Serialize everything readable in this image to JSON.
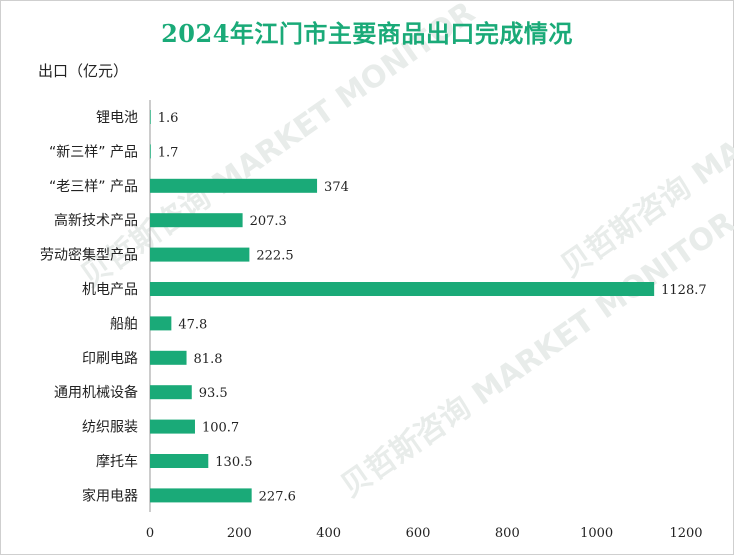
{
  "title": "2024年江门市主要商品出口完成情况",
  "unit_label": "出口（亿元）",
  "watermark": "贝哲斯咨询 MARKET MONITOR",
  "colors": {
    "bar": "#1aaa78",
    "title": "#1aaa78",
    "axis": "#999999"
  },
  "chart_data": {
    "type": "bar",
    "orientation": "horizontal",
    "title": "2024年江门市主要商品出口完成情况",
    "ylabel": "出口（亿元）",
    "categories": [
      "锂电池",
      "“新三样” 产品",
      "“老三样” 产品",
      "高新技术产品",
      "劳动密集型产品",
      "机电产品",
      "船舶",
      "印刷电路",
      "通用机械设备",
      "纺织服装",
      "摩托车",
      "家用电器"
    ],
    "values": [
      1.6,
      1.7,
      374,
      207.3,
      222.5,
      1128.7,
      47.8,
      81.8,
      93.5,
      100.7,
      130.5,
      227.6
    ],
    "value_labels": [
      "1.6",
      "1.7",
      "374",
      "207.3",
      "222.5",
      "1128.7",
      "47.8",
      "81.8",
      "93.5",
      "100.7",
      "130.5",
      "227.6"
    ],
    "xlim": [
      0,
      1200
    ],
    "xticks": [
      "0",
      "200",
      "400",
      "600",
      "800",
      "1000",
      "1200"
    ],
    "grid": false
  }
}
